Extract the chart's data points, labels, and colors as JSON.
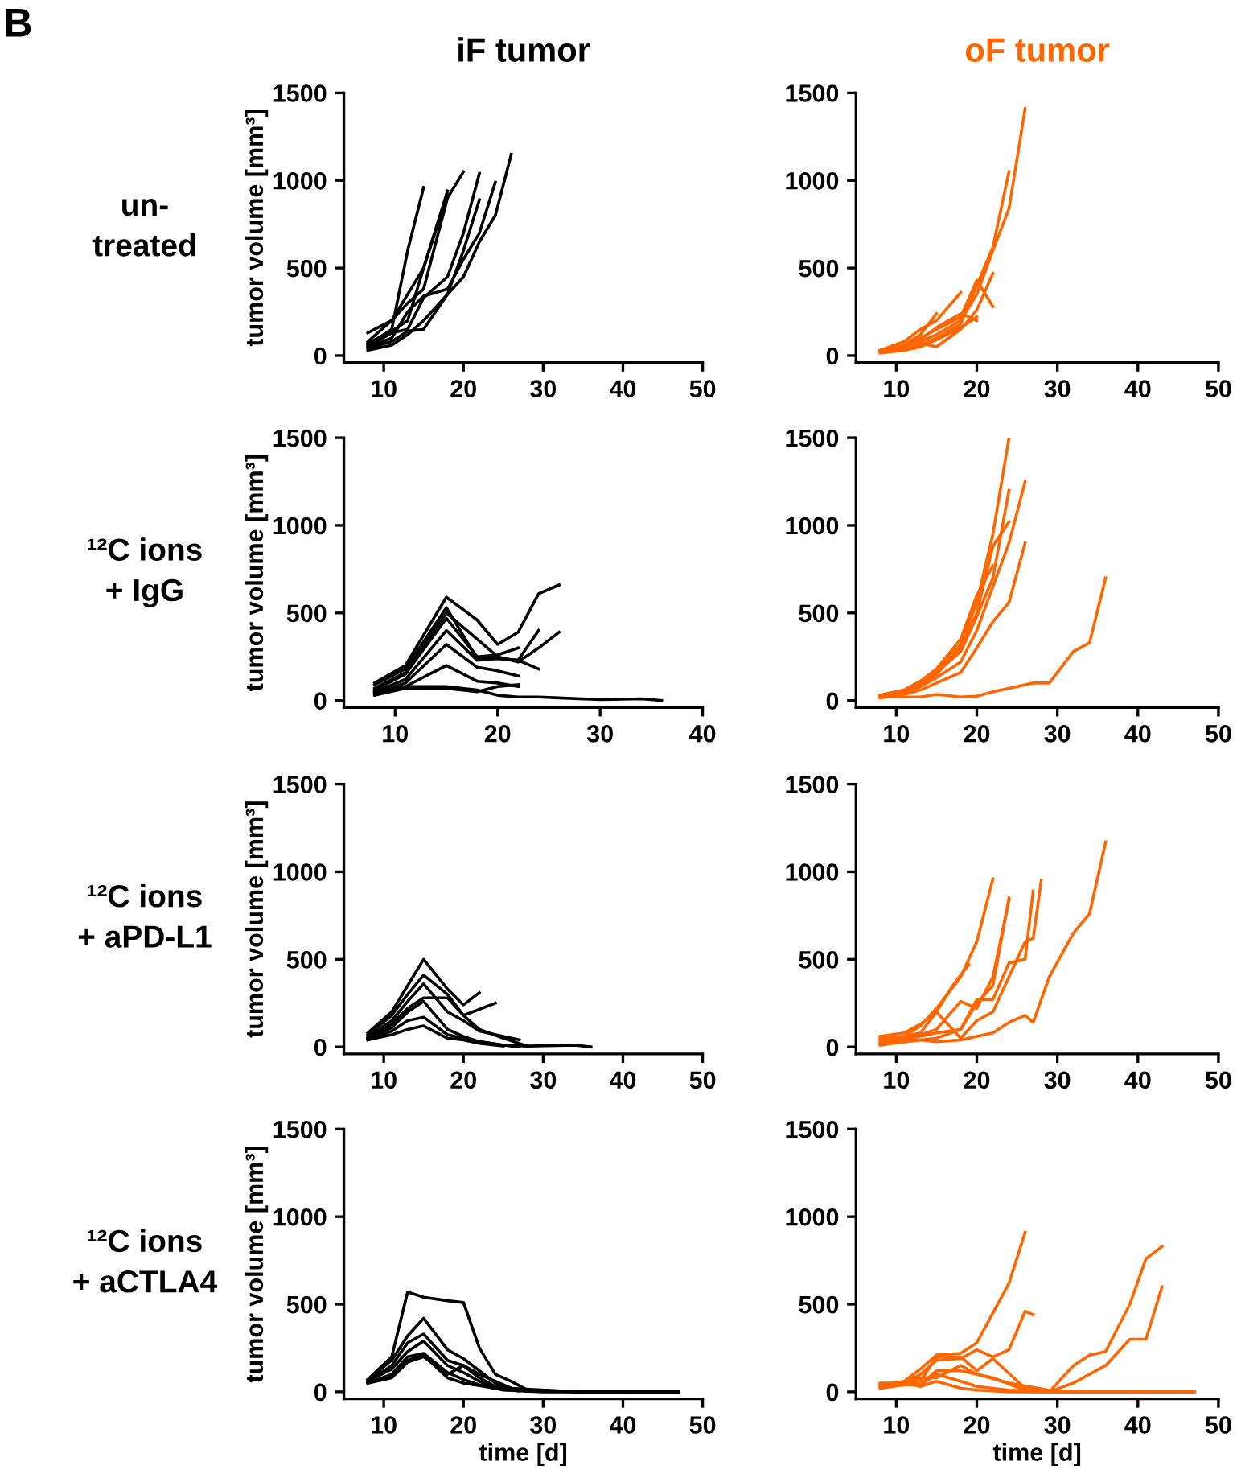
{
  "chart_data": [
    {
      "type": "line",
      "title": "iF tumor",
      "ylabel": "tumor volume [mm³]",
      "annotations": [
        "B",
        "un-\ntreated"
      ],
      "xlim": [
        5,
        50
      ],
      "ylim": [
        -40,
        1500
      ],
      "xticks": [
        10,
        20,
        30,
        40,
        50
      ],
      "yticks": [
        0,
        500,
        1000,
        1500
      ],
      "series": [
        {
          "color": "#000000",
          "x": [
            8,
            11,
            13,
            15
          ],
          "values": [
            60,
            150,
            600,
            960
          ]
        },
        {
          "color": "#000000",
          "x": [
            8,
            11,
            13,
            15,
            18
          ],
          "values": [
            130,
            200,
            350,
            500,
            940
          ]
        },
        {
          "color": "#000000",
          "x": [
            8,
            11,
            13,
            15,
            18,
            20
          ],
          "values": [
            80,
            200,
            300,
            380,
            900,
            1050
          ]
        },
        {
          "color": "#000000",
          "x": [
            8,
            11,
            13,
            15,
            18,
            20,
            22
          ],
          "values": [
            50,
            130,
            150,
            330,
            450,
            700,
            1040
          ]
        },
        {
          "color": "#000000",
          "x": [
            8,
            11,
            13,
            15,
            18,
            20,
            22
          ],
          "values": [
            40,
            80,
            140,
            150,
            350,
            600,
            890
          ]
        },
        {
          "color": "#000000",
          "x": [
            8,
            11,
            13,
            15,
            18,
            20,
            22,
            24
          ],
          "values": [
            50,
            100,
            250,
            340,
            380,
            550,
            700,
            990
          ]
        },
        {
          "color": "#000000",
          "x": [
            8,
            11,
            13,
            15,
            18,
            20,
            22,
            24,
            26
          ],
          "values": [
            30,
            60,
            120,
            200,
            350,
            450,
            650,
            800,
            1150
          ]
        },
        {
          "color": "#000000",
          "x": [
            8,
            11,
            13,
            15,
            18
          ],
          "values": [
            70,
            140,
            200,
            500,
            920
          ]
        }
      ]
    },
    {
      "type": "line",
      "title": "oF tumor",
      "xlim": [
        5,
        50
      ],
      "ylim": [
        -40,
        1500
      ],
      "xticks": [
        10,
        20,
        30,
        40,
        50
      ],
      "yticks": [
        0,
        500,
        1000,
        1500
      ],
      "series": [
        {
          "color": "#ff6600",
          "x": [
            8,
            11,
            13,
            15,
            18,
            20,
            22,
            24,
            26
          ],
          "values": [
            30,
            50,
            80,
            120,
            200,
            350,
            600,
            840,
            1410
          ]
        },
        {
          "color": "#ff6600",
          "x": [
            8,
            11,
            13,
            15,
            18,
            20,
            22,
            24
          ],
          "values": [
            20,
            40,
            60,
            100,
            180,
            400,
            620,
            1050
          ]
        },
        {
          "color": "#ff6600",
          "x": [
            8,
            11,
            13,
            15,
            18,
            20,
            22
          ],
          "values": [
            25,
            60,
            100,
            150,
            220,
            430,
            280
          ]
        },
        {
          "color": "#ff6600",
          "x": [
            8,
            11,
            13,
            15,
            18,
            20,
            22
          ],
          "values": [
            20,
            30,
            70,
            50,
            150,
            260,
            470
          ]
        },
        {
          "color": "#ff6600",
          "x": [
            8,
            11,
            13,
            15,
            18
          ],
          "values": [
            30,
            80,
            150,
            200,
            360
          ]
        },
        {
          "color": "#ff6600",
          "x": [
            8,
            11,
            13,
            15
          ],
          "values": [
            20,
            60,
            120,
            240
          ]
        },
        {
          "color": "#ff6600",
          "x": [
            8,
            11,
            13,
            15,
            18,
            20
          ],
          "values": [
            15,
            30,
            50,
            90,
            160,
            220
          ]
        },
        {
          "color": "#ff6600",
          "x": [
            8,
            11,
            13,
            15,
            18,
            20
          ],
          "values": [
            25,
            45,
            90,
            160,
            240,
            200
          ]
        }
      ]
    },
    {
      "type": "line",
      "ylabel": "tumor volume [mm³]",
      "annotations": [
        "¹²C ions\n+ IgG"
      ],
      "xlim": [
        5,
        40
      ],
      "ylim": [
        -40,
        1500
      ],
      "xticks": [
        10,
        20,
        30,
        40
      ],
      "yticks": [
        0,
        500,
        1000,
        1500
      ],
      "series": [
        {
          "color": "#000000",
          "x": [
            8,
            11,
            15,
            18,
            20,
            22,
            24,
            26
          ],
          "values": [
            100,
            200,
            590,
            460,
            320,
            390,
            610,
            660
          ]
        },
        {
          "color": "#000000",
          "x": [
            8,
            11,
            15,
            18,
            20,
            22,
            24
          ],
          "values": [
            90,
            180,
            530,
            240,
            240,
            230,
            400
          ]
        },
        {
          "color": "#000000",
          "x": [
            8,
            11,
            15,
            18,
            20,
            22,
            24,
            26
          ],
          "values": [
            70,
            160,
            500,
            350,
            250,
            220,
            300,
            390
          ]
        },
        {
          "color": "#000000",
          "x": [
            8,
            11,
            15,
            18,
            20,
            22
          ],
          "values": [
            60,
            150,
            470,
            250,
            260,
            300
          ]
        },
        {
          "color": "#000000",
          "x": [
            8,
            11,
            15,
            18,
            20,
            22,
            24
          ],
          "values": [
            50,
            120,
            400,
            230,
            240,
            230,
            180
          ]
        },
        {
          "color": "#000000",
          "x": [
            8,
            11,
            15,
            18,
            20,
            22
          ],
          "values": [
            40,
            100,
            320,
            190,
            170,
            140
          ]
        },
        {
          "color": "#000000",
          "x": [
            8,
            11,
            15,
            18,
            20,
            22
          ],
          "values": [
            40,
            80,
            200,
            110,
            100,
            80
          ]
        },
        {
          "color": "#000000",
          "x": [
            8,
            11,
            15,
            18,
            20,
            22,
            24,
            26,
            30,
            34,
            36
          ],
          "values": [
            50,
            80,
            80,
            60,
            30,
            20,
            20,
            15,
            5,
            10,
            0
          ]
        },
        {
          "color": "#000000",
          "x": [
            8,
            11,
            15,
            18,
            20,
            22
          ],
          "values": [
            30,
            70,
            70,
            50,
            80,
            90
          ]
        }
      ]
    },
    {
      "type": "line",
      "xlim": [
        5,
        50
      ],
      "ylim": [
        -40,
        1500
      ],
      "xticks": [
        10,
        20,
        30,
        40,
        50
      ],
      "yticks": [
        0,
        500,
        1000,
        1500
      ],
      "series": [
        {
          "color": "#ff6600",
          "x": [
            8,
            11,
            13,
            15,
            18,
            20,
            22,
            24
          ],
          "values": [
            30,
            60,
            110,
            170,
            320,
            560,
            950,
            1500
          ]
        },
        {
          "color": "#ff6600",
          "x": [
            8,
            11,
            13,
            15,
            18,
            20,
            22,
            24
          ],
          "values": [
            20,
            50,
            90,
            150,
            300,
            500,
            880,
            1020
          ]
        },
        {
          "color": "#ff6600",
          "x": [
            8,
            11,
            13,
            15,
            18,
            20,
            22,
            24
          ],
          "values": [
            25,
            55,
            100,
            160,
            280,
            480,
            700,
            1200
          ]
        },
        {
          "color": "#ff6600",
          "x": [
            8,
            11,
            13,
            15,
            18,
            20,
            22,
            24,
            26
          ],
          "values": [
            20,
            40,
            80,
            130,
            220,
            400,
            650,
            900,
            1250
          ]
        },
        {
          "color": "#ff6600",
          "x": [
            8,
            11,
            13,
            15,
            18,
            20,
            22,
            24,
            26
          ],
          "values": [
            15,
            35,
            60,
            100,
            160,
            300,
            450,
            560,
            900
          ]
        },
        {
          "color": "#ff6600",
          "x": [
            8,
            11,
            13,
            15,
            18,
            20,
            22
          ],
          "values": [
            30,
            60,
            110,
            180,
            350,
            600,
            770
          ]
        },
        {
          "color": "#ff6600",
          "x": [
            8,
            13,
            15,
            18,
            20,
            22,
            24,
            27,
            29,
            32,
            34,
            36
          ],
          "values": [
            20,
            20,
            35,
            20,
            25,
            50,
            70,
            100,
            100,
            280,
            330,
            700
          ]
        }
      ]
    },
    {
      "type": "line",
      "ylabel": "tumor volume [mm³]",
      "annotations": [
        "¹²C ions\n+ aPD-L1"
      ],
      "xlim": [
        5,
        50
      ],
      "ylim": [
        -40,
        1500
      ],
      "xticks": [
        10,
        20,
        30,
        40,
        50
      ],
      "yticks": [
        0,
        500,
        1000,
        1500
      ],
      "series": [
        {
          "color": "#000000",
          "x": [
            8,
            11,
            13,
            15,
            18,
            20,
            22
          ],
          "values": [
            80,
            200,
            350,
            500,
            330,
            240,
            310
          ]
        },
        {
          "color": "#000000",
          "x": [
            8,
            11,
            13,
            15,
            18,
            20,
            24
          ],
          "values": [
            70,
            180,
            300,
            410,
            300,
            180,
            250
          ]
        },
        {
          "color": "#000000",
          "x": [
            8,
            11,
            13,
            15,
            18,
            20,
            22,
            27
          ],
          "values": [
            60,
            150,
            260,
            360,
            200,
            150,
            90,
            40
          ]
        },
        {
          "color": "#000000",
          "x": [
            8,
            11,
            13,
            15,
            18,
            20,
            22,
            25,
            28
          ],
          "values": [
            50,
            130,
            220,
            280,
            280,
            180,
            100,
            50,
            5
          ]
        },
        {
          "color": "#000000",
          "x": [
            8,
            11,
            13,
            15,
            18,
            20,
            22,
            25,
            28,
            34,
            36
          ],
          "values": [
            50,
            110,
            200,
            260,
            100,
            60,
            30,
            10,
            5,
            10,
            0
          ]
        },
        {
          "color": "#000000",
          "x": [
            8,
            11,
            13,
            15,
            18,
            20,
            22,
            25,
            27
          ],
          "values": [
            40,
            90,
            150,
            170,
            70,
            50,
            30,
            10,
            0
          ]
        },
        {
          "color": "#000000",
          "x": [
            8,
            11,
            13,
            15,
            18,
            20,
            22,
            25
          ],
          "values": [
            40,
            70,
            100,
            120,
            50,
            40,
            20,
            5
          ]
        }
      ]
    },
    {
      "type": "line",
      "xlim": [
        5,
        50
      ],
      "ylim": [
        -40,
        1500
      ],
      "xticks": [
        10,
        20,
        30,
        40,
        50
      ],
      "yticks": [
        0,
        500,
        1000,
        1500
      ],
      "series": [
        {
          "color": "#ff6600",
          "x": [
            8,
            11,
            13,
            15,
            18,
            20,
            22
          ],
          "values": [
            40,
            60,
            120,
            220,
            400,
            600,
            960
          ]
        },
        {
          "color": "#ff6600",
          "x": [
            8,
            11,
            13,
            15,
            17,
            19
          ],
          "values": [
            60,
            80,
            130,
            200,
            350,
            470
          ]
        },
        {
          "color": "#ff6600",
          "x": [
            8,
            11,
            13,
            15,
            18,
            20,
            22,
            24
          ],
          "values": [
            30,
            50,
            70,
            100,
            260,
            220,
            400,
            840
          ]
        },
        {
          "color": "#ff6600",
          "x": [
            8,
            11,
            13,
            15,
            18,
            20,
            22,
            24,
            26,
            27
          ],
          "values": [
            20,
            40,
            60,
            80,
            100,
            270,
            270,
            480,
            500,
            890
          ]
        },
        {
          "color": "#ff6600",
          "x": [
            8,
            11,
            13,
            15,
            18,
            20,
            22,
            24,
            26,
            27,
            28
          ],
          "values": [
            50,
            60,
            80,
            200,
            50,
            150,
            200,
            400,
            600,
            620,
            950
          ]
        },
        {
          "color": "#ff6600",
          "x": [
            8,
            11,
            13,
            15,
            18,
            20,
            22,
            24,
            26,
            27,
            29,
            32,
            34,
            36
          ],
          "values": [
            20,
            30,
            40,
            30,
            40,
            60,
            80,
            140,
            180,
            140,
            400,
            650,
            760,
            1170
          ]
        },
        {
          "color": "#ff6600",
          "x": [
            8,
            11,
            13,
            15,
            18,
            20,
            22,
            24
          ],
          "values": [
            10,
            30,
            40,
            50,
            100,
            250,
            350,
            850
          ]
        }
      ]
    },
    {
      "type": "line",
      "xlabel": "time [d]",
      "ylabel": "tumor volume [mm³]",
      "annotations": [
        "¹²C ions\n+ aCTLA4"
      ],
      "xlim": [
        5,
        50
      ],
      "ylim": [
        -40,
        1500
      ],
      "xticks": [
        10,
        20,
        30,
        40,
        50
      ],
      "yticks": [
        0,
        500,
        1000,
        1500
      ],
      "series": [
        {
          "color": "#000000",
          "x": [
            8,
            11,
            13,
            15,
            18,
            20,
            22,
            24,
            26,
            28,
            31,
            34,
            47
          ],
          "values": [
            70,
            200,
            570,
            540,
            520,
            510,
            250,
            100,
            60,
            10,
            5,
            0,
            0
          ]
        },
        {
          "color": "#000000",
          "x": [
            8,
            11,
            13,
            15,
            18,
            20,
            22,
            24,
            26,
            28,
            32
          ],
          "values": [
            70,
            180,
            320,
            420,
            240,
            190,
            120,
            50,
            20,
            10,
            5
          ]
        },
        {
          "color": "#000000",
          "x": [
            8,
            11,
            13,
            15,
            18,
            20,
            22,
            24,
            27,
            30
          ],
          "values": [
            60,
            150,
            280,
            330,
            180,
            150,
            80,
            30,
            10,
            5
          ]
        },
        {
          "color": "#000000",
          "x": [
            8,
            11,
            13,
            15,
            18,
            20,
            22,
            24,
            27
          ],
          "values": [
            60,
            130,
            230,
            290,
            150,
            110,
            60,
            20,
            5
          ]
        },
        {
          "color": "#000000",
          "x": [
            8,
            11,
            13,
            15,
            18,
            20,
            22,
            25,
            30,
            40,
            47
          ],
          "values": [
            50,
            100,
            200,
            220,
            110,
            70,
            40,
            10,
            0,
            0,
            0
          ]
        },
        {
          "color": "#000000",
          "x": [
            8,
            11,
            13,
            15,
            18,
            20,
            24,
            28
          ],
          "values": [
            50,
            90,
            180,
            210,
            80,
            50,
            20,
            5
          ]
        },
        {
          "color": "#000000",
          "x": [
            8,
            11,
            13,
            15,
            18,
            20,
            22,
            26,
            34,
            47
          ],
          "values": [
            50,
            80,
            170,
            200,
            100,
            150,
            100,
            20,
            0,
            0
          ]
        }
      ]
    },
    {
      "type": "line",
      "xlabel": "time [d]",
      "xlim": [
        5,
        50
      ],
      "ylim": [
        -40,
        1500
      ],
      "xticks": [
        10,
        20,
        30,
        40,
        50
      ],
      "yticks": [
        0,
        500,
        1000,
        1500
      ],
      "series": [
        {
          "color": "#ff6600",
          "x": [
            8,
            11,
            13,
            15,
            18,
            20,
            22,
            24,
            26
          ],
          "values": [
            40,
            60,
            130,
            210,
            220,
            280,
            450,
            620,
            910
          ]
        },
        {
          "color": "#ff6600",
          "x": [
            8,
            11,
            13,
            15,
            18,
            20,
            22,
            24,
            26,
            27
          ],
          "values": [
            30,
            50,
            100,
            180,
            190,
            240,
            200,
            240,
            460,
            440
          ]
        },
        {
          "color": "#ff6600",
          "x": [
            8,
            11,
            13,
            15,
            18,
            20,
            22,
            26,
            29,
            32,
            34,
            36,
            39,
            41,
            43
          ],
          "values": [
            30,
            50,
            60,
            200,
            200,
            120,
            190,
            20,
            0,
            150,
            210,
            230,
            500,
            760,
            830
          ]
        },
        {
          "color": "#ff6600",
          "x": [
            8,
            11,
            13,
            15,
            18,
            20,
            22,
            26,
            29,
            32,
            36,
            39,
            41,
            43
          ],
          "values": [
            20,
            40,
            40,
            120,
            120,
            100,
            80,
            10,
            0,
            50,
            150,
            300,
            300,
            600
          ]
        },
        {
          "color": "#ff6600",
          "x": [
            8,
            11,
            13,
            15,
            18,
            20,
            24,
            30,
            47
          ],
          "values": [
            30,
            50,
            80,
            80,
            150,
            100,
            50,
            0,
            0
          ]
        },
        {
          "color": "#ff6600",
          "x": [
            8,
            11,
            13,
            15,
            18,
            20,
            24,
            28,
            47
          ],
          "values": [
            40,
            50,
            40,
            100,
            60,
            30,
            10,
            0,
            0
          ]
        },
        {
          "color": "#ff6600",
          "x": [
            8,
            11,
            13,
            15,
            18,
            20,
            22,
            24,
            26,
            47
          ],
          "values": [
            50,
            50,
            30,
            60,
            20,
            10,
            5,
            0,
            0,
            0
          ]
        }
      ]
    }
  ]
}
